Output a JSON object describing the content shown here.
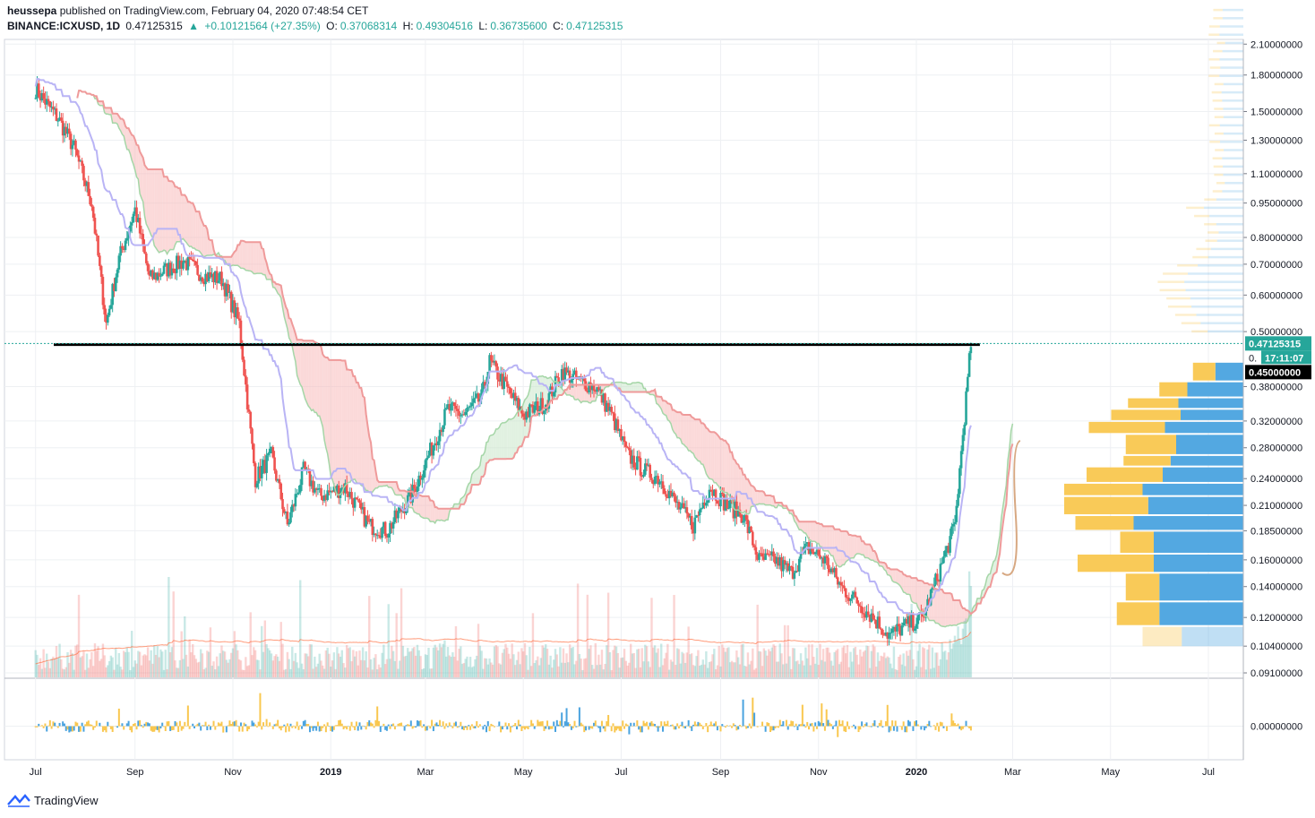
{
  "header": {
    "author": "heussepa",
    "published": "published on TradingView.com, February 04, 2020 07:48:54 CET",
    "symbol": "BINANCE:ICXUSD, 1D",
    "last": "0.47125315",
    "arrow": "▲",
    "change": "+0.10121564 (+27.35%)",
    "o_label": "O:",
    "o_value": "0.37068314",
    "h_label": "H:",
    "h_value": "0.49304516",
    "l_label": "L:",
    "l_value": "0.36735600",
    "c_label": "C:",
    "c_value": "0.47125315"
  },
  "footer": {
    "brand": "TradingView"
  },
  "colors": {
    "up": "#26a69a",
    "down": "#ef5350",
    "cloud_red": "#f8b9b9",
    "cloud_green": "#c8e6c9",
    "kijun": "#b9b4f5",
    "vp_up": "#f9c74f",
    "vp_down": "#4aa3df",
    "last_price_bg": "#26a69a",
    "level_bg": "#000000"
  },
  "chart_data": {
    "type": "candlestick",
    "price_axis": {
      "ticks": [
        "2.10000000",
        "1.80000000",
        "1.50000000",
        "1.30000000",
        "1.10000000",
        "0.95000000",
        "0.80000000",
        "0.70000000",
        "0.60000000",
        "0.50000000",
        "0.38000000",
        "0.32000000",
        "0.28000000",
        "0.24000000",
        "0.21000000",
        "0.18500000",
        "0.16000000",
        "0.14000000",
        "0.12000000",
        "0.10400000",
        "0.09100000"
      ],
      "scale": "log",
      "ylim": [
        0.089,
        2.15
      ]
    },
    "time_axis": {
      "labels": [
        "Jul",
        "Sep",
        "Nov",
        "2019",
        "Mar",
        "May",
        "Jul",
        "Sep",
        "Nov",
        "2020",
        "Mar",
        "May",
        "Jul"
      ],
      "bold_labels": [
        "2019",
        "2020"
      ]
    },
    "price_labels": {
      "last_price": "0.47125315",
      "countdown": "17:11:07",
      "horizontal_level": "0.45000000",
      "partial_tick": "0."
    },
    "oscillator_axis": {
      "ticks": [
        "0.00000000"
      ]
    },
    "close_path": [
      [
        "2018-07-01",
        1.68
      ],
      [
        "2018-07-15",
        1.45
      ],
      [
        "2018-07-25",
        1.25
      ],
      [
        "2018-08-05",
        0.95
      ],
      [
        "2018-08-14",
        0.52
      ],
      [
        "2018-08-22",
        0.72
      ],
      [
        "2018-09-01",
        0.92
      ],
      [
        "2018-09-10",
        0.65
      ],
      [
        "2018-09-20",
        0.68
      ],
      [
        "2018-10-01",
        0.71
      ],
      [
        "2018-10-15",
        0.66
      ],
      [
        "2018-10-25",
        0.65
      ],
      [
        "2018-11-05",
        0.52
      ],
      [
        "2018-11-15",
        0.24
      ],
      [
        "2018-11-25",
        0.27
      ],
      [
        "2018-12-05",
        0.19
      ],
      [
        "2018-12-15",
        0.25
      ],
      [
        "2018-12-25",
        0.22
      ],
      [
        "2019-01-10",
        0.23
      ],
      [
        "2019-01-25",
        0.19
      ],
      [
        "2019-02-05",
        0.185
      ],
      [
        "2019-02-20",
        0.22
      ],
      [
        "2019-03-05",
        0.28
      ],
      [
        "2019-03-15",
        0.34
      ],
      [
        "2019-03-25",
        0.33
      ],
      [
        "2019-04-05",
        0.36
      ],
      [
        "2019-04-10",
        0.43
      ],
      [
        "2019-04-20",
        0.38
      ],
      [
        "2019-05-01",
        0.33
      ],
      [
        "2019-05-15",
        0.35
      ],
      [
        "2019-05-25",
        0.41
      ],
      [
        "2019-06-05",
        0.39
      ],
      [
        "2019-06-15",
        0.38
      ],
      [
        "2019-06-25",
        0.33
      ],
      [
        "2019-07-05",
        0.27
      ],
      [
        "2019-07-15",
        0.25
      ],
      [
        "2019-07-25",
        0.24
      ],
      [
        "2019-08-05",
        0.21
      ],
      [
        "2019-08-15",
        0.19
      ],
      [
        "2019-08-25",
        0.23
      ],
      [
        "2019-09-05",
        0.21
      ],
      [
        "2019-09-15",
        0.2
      ],
      [
        "2019-09-25",
        0.16
      ],
      [
        "2019-10-05",
        0.16
      ],
      [
        "2019-10-15",
        0.15
      ],
      [
        "2019-10-25",
        0.17
      ],
      [
        "2019-11-05",
        0.16
      ],
      [
        "2019-11-15",
        0.14
      ],
      [
        "2019-11-25",
        0.13
      ],
      [
        "2019-12-05",
        0.12
      ],
      [
        "2019-12-15",
        0.11
      ],
      [
        "2019-12-25",
        0.115
      ],
      [
        "2020-01-05",
        0.12
      ],
      [
        "2020-01-15",
        0.15
      ],
      [
        "2020-01-25",
        0.19
      ],
      [
        "2020-01-30",
        0.3
      ],
      [
        "2020-02-04",
        0.47125315
      ]
    ],
    "volume_profile": {
      "price_bins": [
        0.43,
        0.39,
        0.36,
        0.34,
        0.32,
        0.3,
        0.27,
        0.255,
        0.235,
        0.22,
        0.2,
        0.185,
        0.165,
        0.15,
        0.13,
        0.115
      ],
      "up_volume": [
        20,
        25,
        45,
        62,
        68,
        45,
        42,
        68,
        70,
        75,
        52,
        30,
        68,
        30,
        38,
        35
      ],
      "down_volume": [
        25,
        50,
        58,
        56,
        70,
        60,
        65,
        72,
        90,
        85,
        98,
        80,
        80,
        75,
        75,
        55
      ]
    }
  }
}
